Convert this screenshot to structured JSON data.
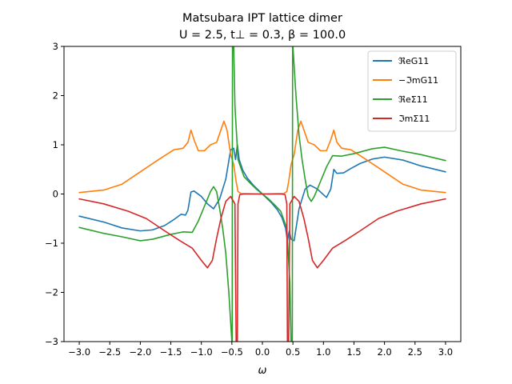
{
  "chart_data": {
    "type": "line",
    "title_line1": "Matsubara IPT lattice dimer",
    "title_line2": "U = 2.5, t⊥ = 0.3, β = 100.0",
    "xlabel": "ω",
    "ylabel": "",
    "xlim": [
      -3.25,
      3.25
    ],
    "ylim": [
      -3,
      3
    ],
    "xticks": [
      -3.0,
      -2.5,
      -2.0,
      -1.5,
      -1.0,
      -0.5,
      0.0,
      0.5,
      1.0,
      1.5,
      2.0,
      2.5,
      3.0
    ],
    "xtick_labels": [
      "−3.0",
      "−2.5",
      "−2.0",
      "−1.5",
      "−1.0",
      "−0.5",
      "0.0",
      "0.5",
      "1.0",
      "1.5",
      "2.0",
      "2.5",
      "3.0"
    ],
    "yticks": [
      -3,
      -2,
      -1,
      0,
      1,
      2,
      3
    ],
    "ytick_labels": [
      "−3",
      "−2",
      "−1",
      "0",
      "1",
      "2",
      "3"
    ],
    "grid": false,
    "legend_position": "top-right",
    "series": [
      {
        "name": "ℜeG11",
        "color": "#1f77b4",
        "points": [
          [
            -3.0,
            -0.45
          ],
          [
            -2.6,
            -0.57
          ],
          [
            -2.3,
            -0.69
          ],
          [
            -2.0,
            -0.75
          ],
          [
            -1.8,
            -0.73
          ],
          [
            -1.6,
            -0.64
          ],
          [
            -1.45,
            -0.52
          ],
          [
            -1.33,
            -0.41
          ],
          [
            -1.26,
            -0.43
          ],
          [
            -1.22,
            -0.33
          ],
          [
            -1.17,
            0.04
          ],
          [
            -1.12,
            0.06
          ],
          [
            -1.0,
            -0.05
          ],
          [
            -0.9,
            -0.2
          ],
          [
            -0.8,
            -0.3
          ],
          [
            -0.7,
            -0.1
          ],
          [
            -0.6,
            0.3
          ],
          [
            -0.52,
            0.9
          ],
          [
            -0.47,
            0.93
          ],
          [
            -0.44,
            0.7
          ],
          [
            -0.41,
            1.0
          ],
          [
            -0.38,
            0.7
          ],
          [
            -0.32,
            0.48
          ],
          [
            -0.25,
            0.33
          ],
          [
            -0.15,
            0.18
          ],
          [
            0.0,
            0.0
          ],
          [
            0.15,
            -0.18
          ],
          [
            0.25,
            -0.33
          ],
          [
            0.32,
            -0.48
          ],
          [
            0.38,
            -0.7
          ],
          [
            0.41,
            -0.95
          ],
          [
            0.44,
            -0.75
          ],
          [
            0.47,
            -0.92
          ],
          [
            0.52,
            -0.95
          ],
          [
            0.6,
            -0.3
          ],
          [
            0.7,
            0.1
          ],
          [
            0.78,
            0.18
          ],
          [
            0.9,
            0.1
          ],
          [
            1.05,
            -0.07
          ],
          [
            1.12,
            0.1
          ],
          [
            1.17,
            0.5
          ],
          [
            1.22,
            0.42
          ],
          [
            1.33,
            0.43
          ],
          [
            1.45,
            0.52
          ],
          [
            1.6,
            0.62
          ],
          [
            1.8,
            0.71
          ],
          [
            2.0,
            0.75
          ],
          [
            2.3,
            0.69
          ],
          [
            2.6,
            0.57
          ],
          [
            3.0,
            0.45
          ]
        ]
      },
      {
        "name": "−ℑmG11",
        "color": "#ff7f0e",
        "points": [
          [
            -3.0,
            0.03
          ],
          [
            -2.6,
            0.08
          ],
          [
            -2.3,
            0.2
          ],
          [
            -2.0,
            0.45
          ],
          [
            -1.7,
            0.7
          ],
          [
            -1.45,
            0.9
          ],
          [
            -1.3,
            0.93
          ],
          [
            -1.22,
            1.05
          ],
          [
            -1.17,
            1.3
          ],
          [
            -1.12,
            1.1
          ],
          [
            -1.05,
            0.88
          ],
          [
            -0.95,
            0.88
          ],
          [
            -0.85,
            1.0
          ],
          [
            -0.75,
            1.05
          ],
          [
            -0.68,
            1.3
          ],
          [
            -0.63,
            1.48
          ],
          [
            -0.58,
            1.3
          ],
          [
            -0.52,
            0.8
          ],
          [
            -0.47,
            0.6
          ],
          [
            -0.43,
            0.25
          ],
          [
            -0.4,
            0.05
          ],
          [
            -0.35,
            0.01
          ],
          [
            0.0,
            0.0
          ],
          [
            0.35,
            0.01
          ],
          [
            0.4,
            0.05
          ],
          [
            0.43,
            0.25
          ],
          [
            0.47,
            0.6
          ],
          [
            0.52,
            0.8
          ],
          [
            0.58,
            1.3
          ],
          [
            0.63,
            1.48
          ],
          [
            0.68,
            1.3
          ],
          [
            0.75,
            1.05
          ],
          [
            0.85,
            1.0
          ],
          [
            0.95,
            0.88
          ],
          [
            1.05,
            0.88
          ],
          [
            1.12,
            1.1
          ],
          [
            1.17,
            1.3
          ],
          [
            1.22,
            1.05
          ],
          [
            1.3,
            0.93
          ],
          [
            1.45,
            0.9
          ],
          [
            1.7,
            0.7
          ],
          [
            2.0,
            0.45
          ],
          [
            2.3,
            0.2
          ],
          [
            2.6,
            0.08
          ],
          [
            3.0,
            0.03
          ]
        ]
      },
      {
        "name": "ℜeΣ11",
        "color": "#2ca02c",
        "points": [
          [
            -3.0,
            -0.68
          ],
          [
            -2.6,
            -0.8
          ],
          [
            -2.3,
            -0.87
          ],
          [
            -2.0,
            -0.95
          ],
          [
            -1.8,
            -0.92
          ],
          [
            -1.5,
            -0.82
          ],
          [
            -1.3,
            -0.77
          ],
          [
            -1.15,
            -0.78
          ],
          [
            -1.05,
            -0.55
          ],
          [
            -0.95,
            -0.25
          ],
          [
            -0.85,
            0.05
          ],
          [
            -0.8,
            0.15
          ],
          [
            -0.75,
            0.05
          ],
          [
            -0.7,
            -0.3
          ],
          [
            -0.65,
            -0.7
          ],
          [
            -0.6,
            -1.2
          ],
          [
            -0.55,
            -2.0
          ],
          [
            -0.5,
            -3.0
          ],
          [
            -0.495,
            -3.0
          ],
          [
            -0.49,
            3.0
          ],
          [
            -0.47,
            3.0
          ],
          [
            -0.45,
            1.8
          ],
          [
            -0.4,
            0.7
          ],
          [
            -0.3,
            0.35
          ],
          [
            -0.2,
            0.22
          ],
          [
            -0.1,
            0.1
          ],
          [
            0.0,
            0.0
          ],
          [
            0.1,
            -0.1
          ],
          [
            0.2,
            -0.22
          ],
          [
            0.3,
            -0.35
          ],
          [
            0.4,
            -0.7
          ],
          [
            0.45,
            -1.8
          ],
          [
            0.47,
            -3.0
          ],
          [
            0.49,
            -3.0
          ],
          [
            0.495,
            3.0
          ],
          [
            0.5,
            3.0
          ],
          [
            0.55,
            2.0
          ],
          [
            0.6,
            1.2
          ],
          [
            0.65,
            0.7
          ],
          [
            0.7,
            0.3
          ],
          [
            0.75,
            -0.05
          ],
          [
            0.8,
            -0.15
          ],
          [
            0.85,
            -0.05
          ],
          [
            0.95,
            0.25
          ],
          [
            1.05,
            0.55
          ],
          [
            1.15,
            0.78
          ],
          [
            1.3,
            0.77
          ],
          [
            1.5,
            0.82
          ],
          [
            1.8,
            0.92
          ],
          [
            2.0,
            0.95
          ],
          [
            2.3,
            0.87
          ],
          [
            2.6,
            0.8
          ],
          [
            3.0,
            0.68
          ]
        ]
      },
      {
        "name": "ℑmΣ11",
        "color": "#d62728",
        "points": [
          [
            -3.0,
            -0.1
          ],
          [
            -2.6,
            -0.2
          ],
          [
            -2.2,
            -0.35
          ],
          [
            -1.9,
            -0.5
          ],
          [
            -1.6,
            -0.75
          ],
          [
            -1.35,
            -0.95
          ],
          [
            -1.15,
            -1.1
          ],
          [
            -1.0,
            -1.35
          ],
          [
            -0.9,
            -1.5
          ],
          [
            -0.82,
            -1.35
          ],
          [
            -0.75,
            -0.9
          ],
          [
            -0.68,
            -0.5
          ],
          [
            -0.6,
            -0.15
          ],
          [
            -0.52,
            -0.05
          ],
          [
            -0.45,
            -0.2
          ],
          [
            -0.43,
            -3.0
          ],
          [
            -0.41,
            -3.0
          ],
          [
            -0.4,
            -0.2
          ],
          [
            -0.37,
            -0.01
          ],
          [
            -0.3,
            0.0
          ],
          [
            0.3,
            0.0
          ],
          [
            0.37,
            -0.01
          ],
          [
            0.4,
            -0.2
          ],
          [
            0.41,
            -3.0
          ],
          [
            0.43,
            -3.0
          ],
          [
            0.45,
            -0.2
          ],
          [
            0.52,
            -0.05
          ],
          [
            0.6,
            -0.15
          ],
          [
            0.68,
            -0.5
          ],
          [
            0.75,
            -0.9
          ],
          [
            0.82,
            -1.35
          ],
          [
            0.9,
            -1.5
          ],
          [
            1.0,
            -1.35
          ],
          [
            1.15,
            -1.1
          ],
          [
            1.35,
            -0.95
          ],
          [
            1.6,
            -0.75
          ],
          [
            1.9,
            -0.5
          ],
          [
            2.2,
            -0.35
          ],
          [
            2.6,
            -0.2
          ],
          [
            3.0,
            -0.1
          ]
        ]
      }
    ]
  }
}
